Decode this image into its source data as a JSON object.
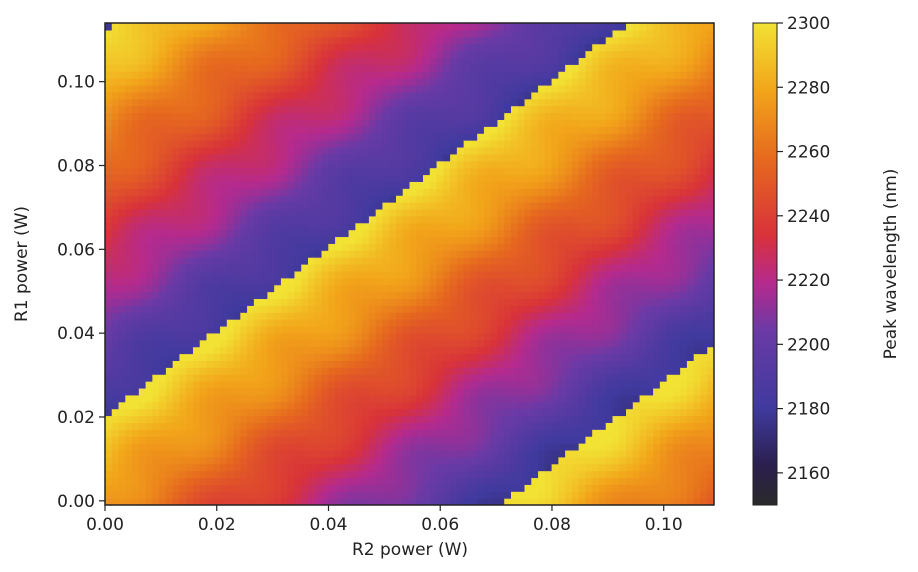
{
  "chart_data": {
    "type": "heatmap",
    "xlabel": "R2 power (W)",
    "ylabel": "R1 power (W)",
    "xlim": [
      0.0,
      0.109
    ],
    "ylim": [
      -0.001,
      0.114
    ],
    "xticks": [
      "0.00",
      "0.02",
      "0.04",
      "0.06",
      "0.08",
      "0.10"
    ],
    "yticks": [
      "0.00",
      "0.02",
      "0.04",
      "0.06",
      "0.08",
      "0.10"
    ],
    "colorbar": {
      "label": "Peak wavelength (nm)",
      "min": 2150,
      "max": 2300,
      "ticks": [
        "2160",
        "2180",
        "2200",
        "2220",
        "2240",
        "2260",
        "2280",
        "2300"
      ],
      "colormap": "CMRmap-like (black-blue-purple-red-orange-yellow)"
    },
    "grid": false,
    "pattern": "diagonal periodic bands: wavelength decreases along the R1-R2 difference, jumping from ~2300 nm back to ~2180 nm at mode-hop boundaries near R1 ≈ R2 + 0.02 W and R1 ≈ R2 - 0.072 W"
  }
}
